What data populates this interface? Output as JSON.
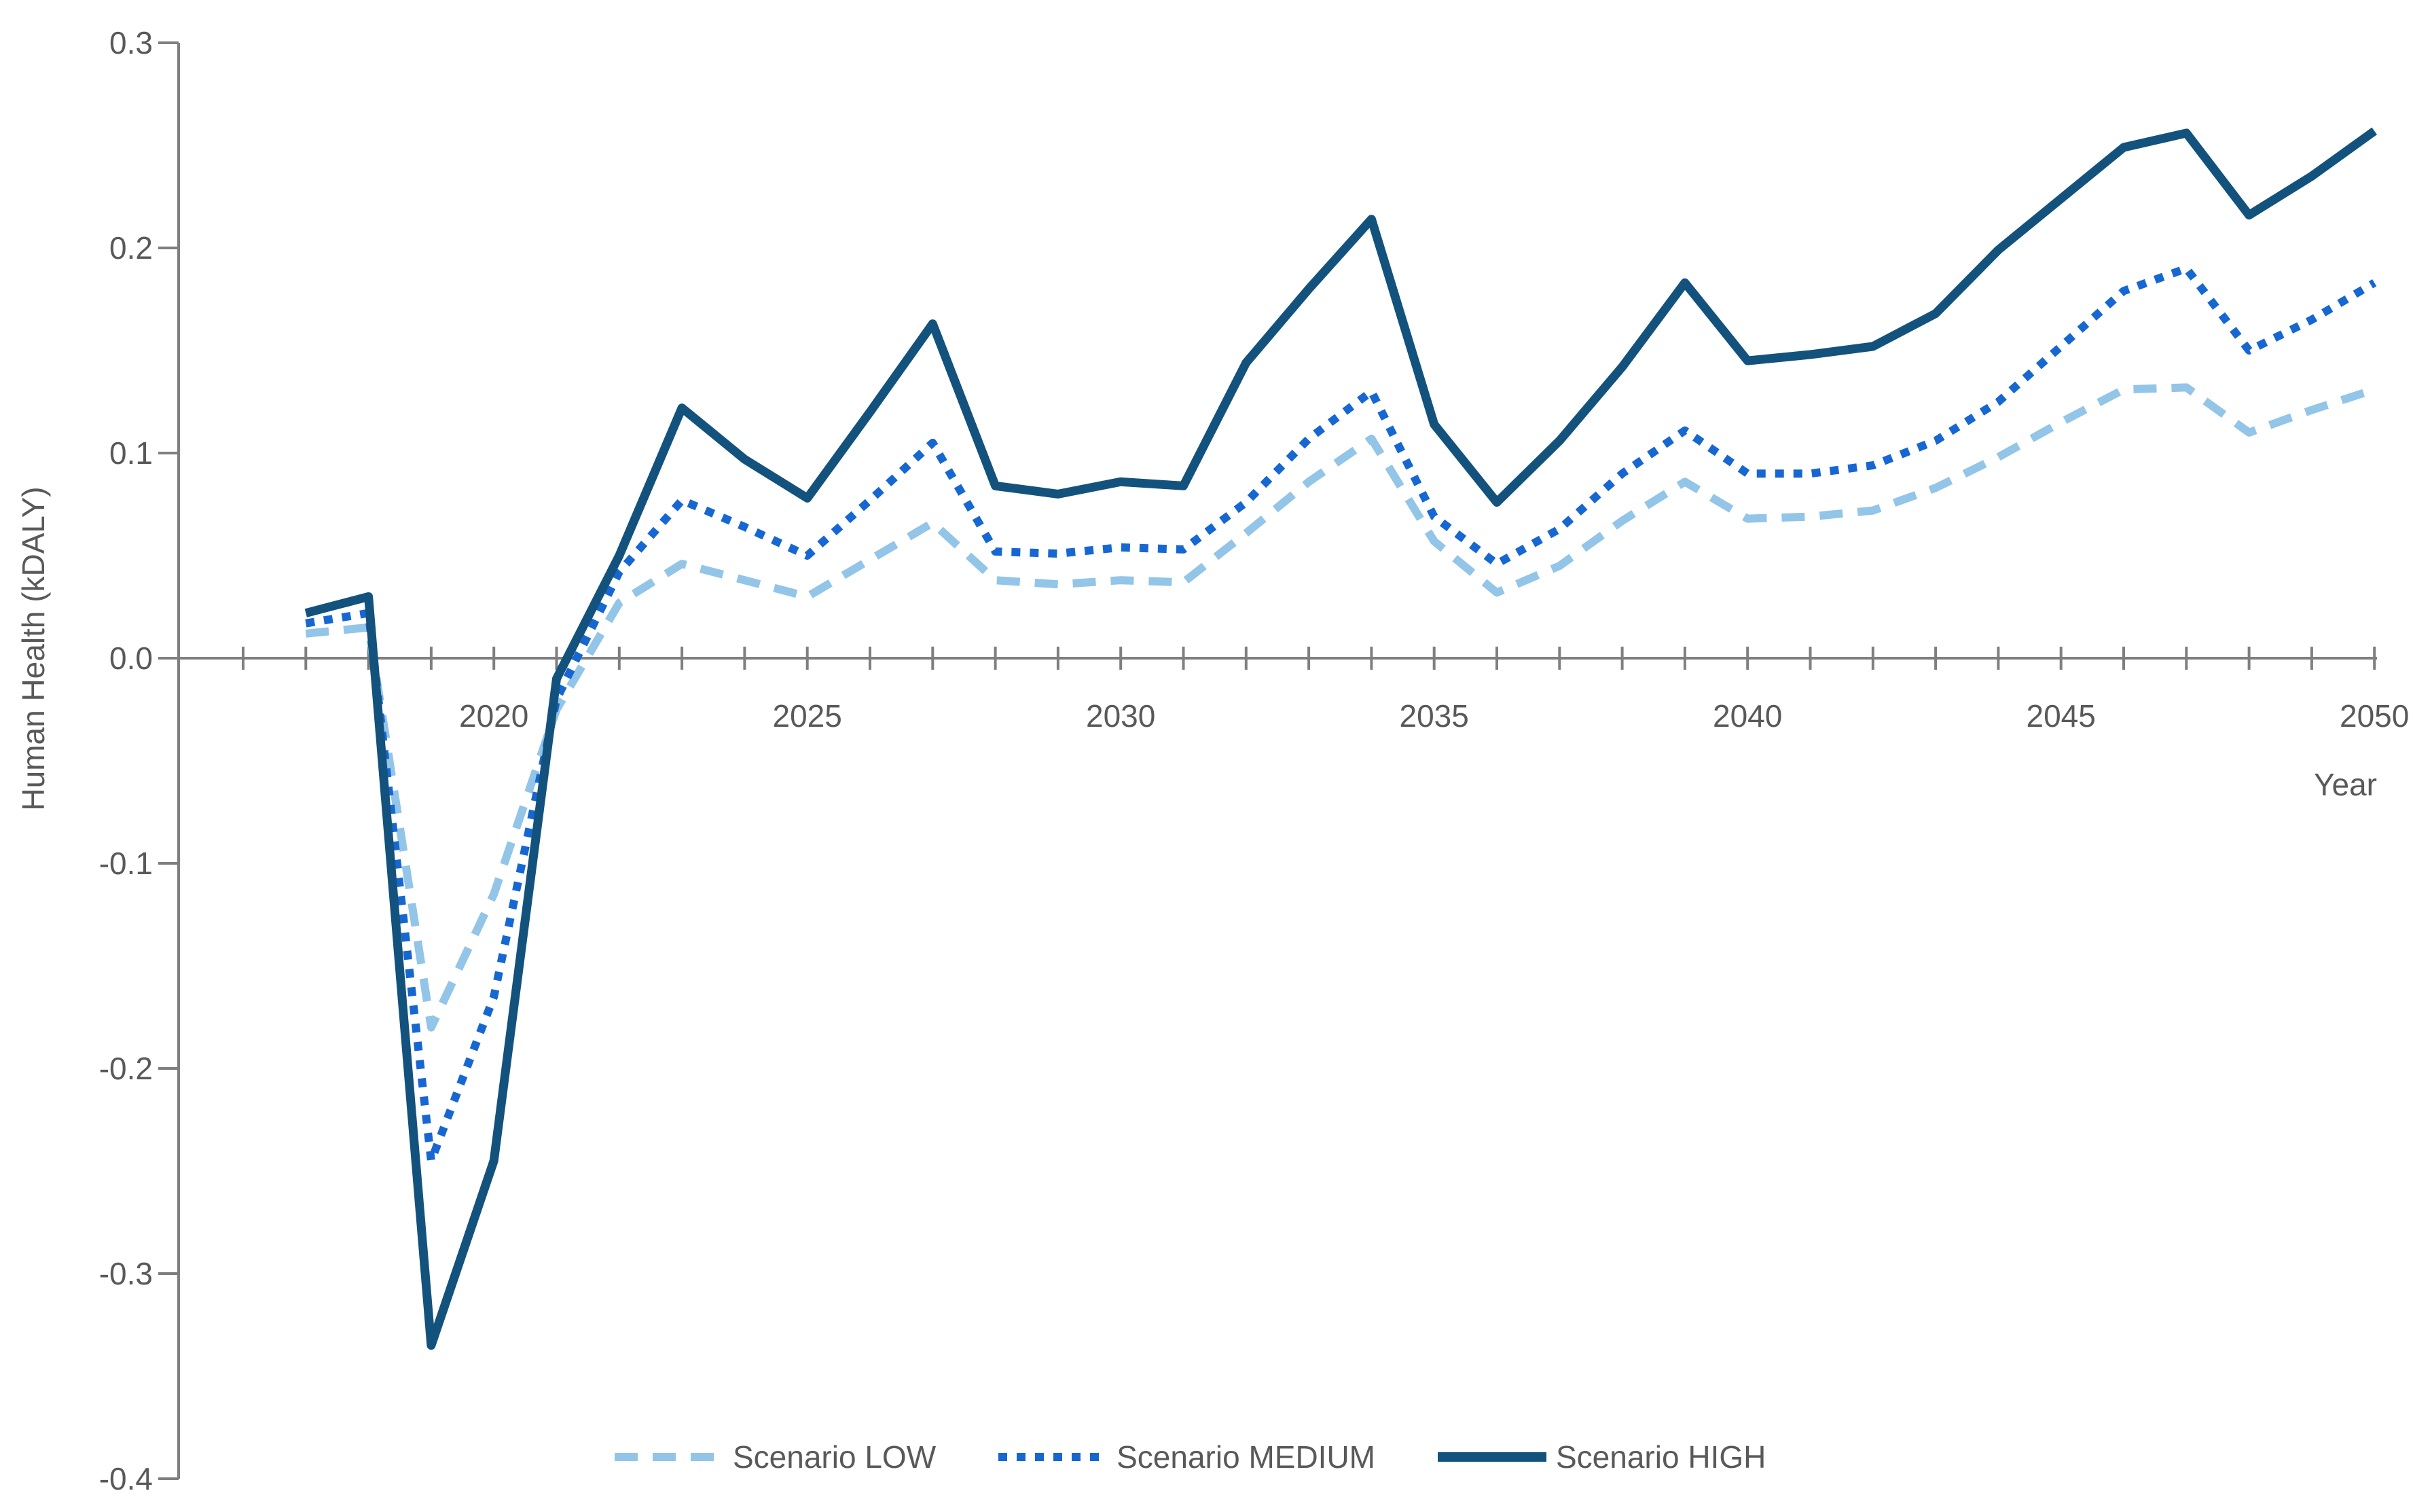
{
  "chart_data": {
    "type": "line",
    "title": "",
    "xlabel": "Year",
    "ylabel": "Human Health (kDALY)",
    "grid": false,
    "legend_position": "bottom",
    "xlim": [
      2016,
      2050
    ],
    "ylim": [
      -0.4,
      0.3
    ],
    "x_tick_years_start": 2016,
    "x_tick_years_end": 2050,
    "x_labeled_ticks": [
      2020,
      2025,
      2030,
      2035,
      2040,
      2045,
      2050
    ],
    "y_ticks": [
      {
        "value": 0.3,
        "label": "0.3"
      },
      {
        "value": 0.2,
        "label": "0.2"
      },
      {
        "value": 0.1,
        "label": "0.1"
      },
      {
        "value": 0.0,
        "label": "0.0"
      },
      {
        "value": -0.1,
        "label": "-0.1"
      },
      {
        "value": -0.2,
        "label": "-0.2"
      },
      {
        "value": -0.3,
        "label": "-0.3"
      },
      {
        "value": -0.4,
        "label": "-0.4"
      }
    ],
    "axis_color": "#7F7F7F",
    "text_color": "#595959",
    "x": [
      2017,
      2018,
      2019,
      2020,
      2021,
      2022,
      2023,
      2024,
      2025,
      2026,
      2027,
      2028,
      2029,
      2030,
      2031,
      2032,
      2033,
      2034,
      2035,
      2036,
      2037,
      2038,
      2039,
      2040,
      2041,
      2042,
      2043,
      2044,
      2045,
      2046,
      2047,
      2048,
      2049,
      2050
    ],
    "series": [
      {
        "name": "Scenario LOW",
        "color": "#92C5E8",
        "style": "dashed",
        "values": [
          0.012,
          0.015,
          -0.18,
          -0.115,
          -0.025,
          0.027,
          0.046,
          0.038,
          0.03,
          0.048,
          0.066,
          0.038,
          0.036,
          0.038,
          0.037,
          0.061,
          0.086,
          0.107,
          0.057,
          0.032,
          0.045,
          0.067,
          0.086,
          0.068,
          0.069,
          0.072,
          0.083,
          0.098,
          0.115,
          0.131,
          0.132,
          0.11,
          0.121,
          0.131
        ]
      },
      {
        "name": "Scenario MEDIUM",
        "color": "#1667D2",
        "style": "dotted",
        "values": [
          0.017,
          0.022,
          -0.245,
          -0.165,
          -0.02,
          0.042,
          0.077,
          0.064,
          0.05,
          0.077,
          0.105,
          0.052,
          0.051,
          0.054,
          0.053,
          0.076,
          0.107,
          0.13,
          0.069,
          0.046,
          0.063,
          0.09,
          0.111,
          0.09,
          0.09,
          0.094,
          0.106,
          0.125,
          0.152,
          0.179,
          0.19,
          0.15,
          0.165,
          0.183
        ]
      },
      {
        "name": "Scenario HIGH",
        "color": "#13527D",
        "style": "solid",
        "values": [
          0.022,
          0.03,
          -0.335,
          -0.245,
          -0.01,
          0.05,
          0.122,
          0.097,
          0.078,
          0.12,
          0.163,
          0.084,
          0.08,
          0.086,
          0.084,
          0.144,
          0.18,
          0.214,
          0.114,
          0.076,
          0.106,
          0.142,
          0.183,
          0.145,
          0.148,
          0.152,
          0.168,
          0.199,
          0.224,
          0.249,
          0.256,
          0.216,
          0.235,
          0.257
        ]
      }
    ]
  }
}
